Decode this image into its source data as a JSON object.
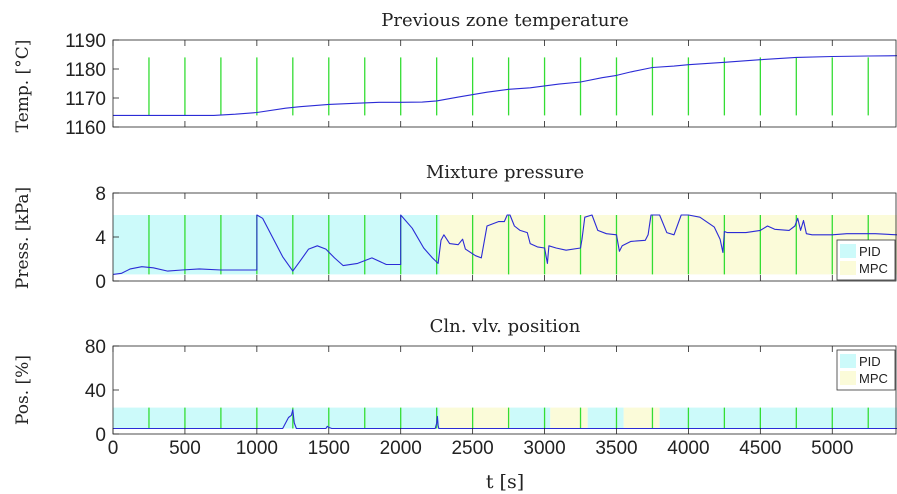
{
  "colors": {
    "pid_band": "#ccfafa",
    "mpc_band": "#fbfbd9",
    "trace": "#2b2bd6",
    "markers": "#33dd33",
    "axis": "#222222"
  },
  "chart_data": [
    {
      "id": "temp",
      "type": "line",
      "title": "Previous zone temperature",
      "ylabel": "Temp. [°C]",
      "ylim": [
        1160,
        1190
      ],
      "yticks": [
        1160,
        1170,
        1180,
        1190
      ],
      "xlim": [
        0,
        5450
      ],
      "grid": false,
      "legend": null,
      "markers": {
        "x": [
          250,
          500,
          750,
          1000,
          1250,
          1500,
          1750,
          2000,
          2250,
          2500,
          2750,
          3000,
          3250,
          3500,
          3750,
          4000,
          4250,
          4500,
          4750,
          5000,
          5250
        ],
        "ymin": 1164,
        "ymax": 1184
      },
      "series": [
        {
          "x": [
            0,
            250,
            500,
            700,
            850,
            1000,
            1200,
            1300,
            1500,
            1700,
            1850,
            2000,
            2150,
            2250,
            2400,
            2600,
            2750,
            2900,
            3100,
            3250,
            3400,
            3500,
            3600,
            3750,
            3900,
            4000,
            4250,
            4500,
            4750,
            5000,
            5250,
            5450
          ],
          "y": [
            1164,
            1164,
            1164,
            1164,
            1164.4,
            1165,
            1166.5,
            1167,
            1167.8,
            1168.2,
            1168.5,
            1168.5,
            1168.6,
            1169,
            1170.3,
            1172,
            1173,
            1173.5,
            1174.8,
            1175.5,
            1177,
            1177.8,
            1179,
            1180.5,
            1181,
            1181.5,
            1182.3,
            1183.2,
            1184,
            1184.3,
            1184.5,
            1184.6
          ]
        }
      ]
    },
    {
      "id": "press",
      "type": "line",
      "title": "Mixture pressure",
      "ylabel": "Press. [kPa]",
      "ylim": [
        0,
        8
      ],
      "yticks": [
        0,
        4,
        8
      ],
      "xlim": [
        0,
        5450
      ],
      "grid": false,
      "legend": {
        "entries": [
          "PID",
          "MPC"
        ],
        "placement": "bottom-right"
      },
      "bands": [
        {
          "mode": "PID",
          "from": 0,
          "to": 2270,
          "ymin": 0.6,
          "ymax": 6
        },
        {
          "mode": "MPC",
          "from": 2270,
          "to": 5450,
          "ymin": 0.6,
          "ymax": 6
        }
      ],
      "markers": {
        "x": [
          250,
          500,
          750,
          1000,
          1250,
          1500,
          1750,
          2000,
          2250,
          2500,
          2750,
          3000,
          3250,
          3500,
          3750,
          4000,
          4250,
          4500,
          4750,
          5000,
          5250
        ],
        "ymin": 0.6,
        "ymax": 6
      },
      "series": [
        {
          "x": [
            0,
            60,
            120,
            200,
            280,
            380,
            480,
            600,
            750,
            900,
            1000,
            1000,
            1040,
            1100,
            1180,
            1250,
            1300,
            1360,
            1420,
            1480,
            1540,
            1600,
            1700,
            1800,
            1900,
            2000,
            2000,
            2080,
            2160,
            2220,
            2260,
            2280,
            2300,
            2340,
            2400,
            2430,
            2450,
            2520,
            2560,
            2600,
            2680,
            2720,
            2740,
            2760,
            2790,
            2830,
            2880,
            2900,
            2950,
            3000,
            3020,
            3030,
            3080,
            3150,
            3250,
            3260,
            3280,
            3330,
            3370,
            3430,
            3500,
            3520,
            3540,
            3600,
            3700,
            3720,
            3740,
            3800,
            3850,
            3900,
            3950,
            3980,
            4000,
            4080,
            4180,
            4220,
            4240,
            4250,
            4270,
            4320,
            4400,
            4500,
            4550,
            4600,
            4700,
            4740,
            4760,
            4780,
            4800,
            4820,
            4860,
            4900,
            4950,
            5000,
            5100,
            5200,
            5300,
            5450
          ],
          "y": [
            0.6,
            0.7,
            1.1,
            1.3,
            1.2,
            0.9,
            1.0,
            1.1,
            1.0,
            1.0,
            1.0,
            6.0,
            5.7,
            4.2,
            2.2,
            0.9,
            1.8,
            2.9,
            3.2,
            2.9,
            2.1,
            1.4,
            1.6,
            2.1,
            1.5,
            1.5,
            6.0,
            4.8,
            3.0,
            2.1,
            1.6,
            3.7,
            4.2,
            3.4,
            3.3,
            3.8,
            2.9,
            2.3,
            2.1,
            5.0,
            5.4,
            5.4,
            6.0,
            6.0,
            5.0,
            4.6,
            4.4,
            3.4,
            3.1,
            3.0,
            1.6,
            3.2,
            3.0,
            2.8,
            3.0,
            3.8,
            5.8,
            6.0,
            4.6,
            4.3,
            4.2,
            2.7,
            3.2,
            3.6,
            3.7,
            4.2,
            6.0,
            6.0,
            4.4,
            4.2,
            6.0,
            6.0,
            6.0,
            5.8,
            4.9,
            3.8,
            2.6,
            4.5,
            4.4,
            4.4,
            4.4,
            4.6,
            5.0,
            4.7,
            4.6,
            5.0,
            5.7,
            4.6,
            5.5,
            4.3,
            4.2,
            4.2,
            4.2,
            4.2,
            4.3,
            4.3,
            4.3,
            4.2
          ]
        }
      ]
    },
    {
      "id": "pos",
      "type": "line",
      "title": "Cln. vlv. position",
      "ylabel": "Pos. [%]",
      "xlabel": "t [s]",
      "ylim": [
        0,
        80
      ],
      "yticks": [
        0,
        40,
        80
      ],
      "xlim": [
        0,
        5450
      ],
      "xticks": [
        0,
        500,
        1000,
        1500,
        2000,
        2500,
        3000,
        3500,
        4000,
        4500,
        5000
      ],
      "grid": false,
      "legend": {
        "entries": [
          "PID",
          "MPC"
        ],
        "placement": "top-right"
      },
      "bands": [
        {
          "mode": "PID",
          "from": 0,
          "to": 2270,
          "ymin": 5,
          "ymax": 24
        },
        {
          "mode": "MPC",
          "from": 2270,
          "to": 2760,
          "ymin": 5,
          "ymax": 24
        },
        {
          "mode": "PID",
          "from": 2760,
          "to": 3040,
          "ymin": 5,
          "ymax": 24
        },
        {
          "mode": "MPC",
          "from": 3040,
          "to": 3300,
          "ymin": 5,
          "ymax": 24
        },
        {
          "mode": "PID",
          "from": 3300,
          "to": 3550,
          "ymin": 5,
          "ymax": 24
        },
        {
          "mode": "MPC",
          "from": 3550,
          "to": 3800,
          "ymin": 5,
          "ymax": 24
        },
        {
          "mode": "PID",
          "from": 3800,
          "to": 5450,
          "ymin": 5,
          "ymax": 24
        }
      ],
      "markers": {
        "x": [
          250,
          500,
          750,
          1000,
          1250,
          1500,
          1750,
          2000,
          2250,
          2500,
          2750,
          3000,
          3250,
          3500,
          3750,
          4000,
          4250,
          4500,
          4750,
          5000,
          5250
        ],
        "ymin": 5,
        "ymax": 24
      },
      "series": [
        {
          "x": [
            0,
            1180,
            1200,
            1220,
            1240,
            1250,
            1260,
            1275,
            1480,
            1490,
            1500,
            1520,
            2240,
            2250,
            2255,
            2260,
            2265,
            5450
          ],
          "y": [
            5,
            5,
            10,
            15,
            17,
            22,
            10,
            5,
            5,
            7,
            6,
            5,
            5,
            10,
            16,
            8,
            5,
            5
          ]
        }
      ]
    }
  ]
}
